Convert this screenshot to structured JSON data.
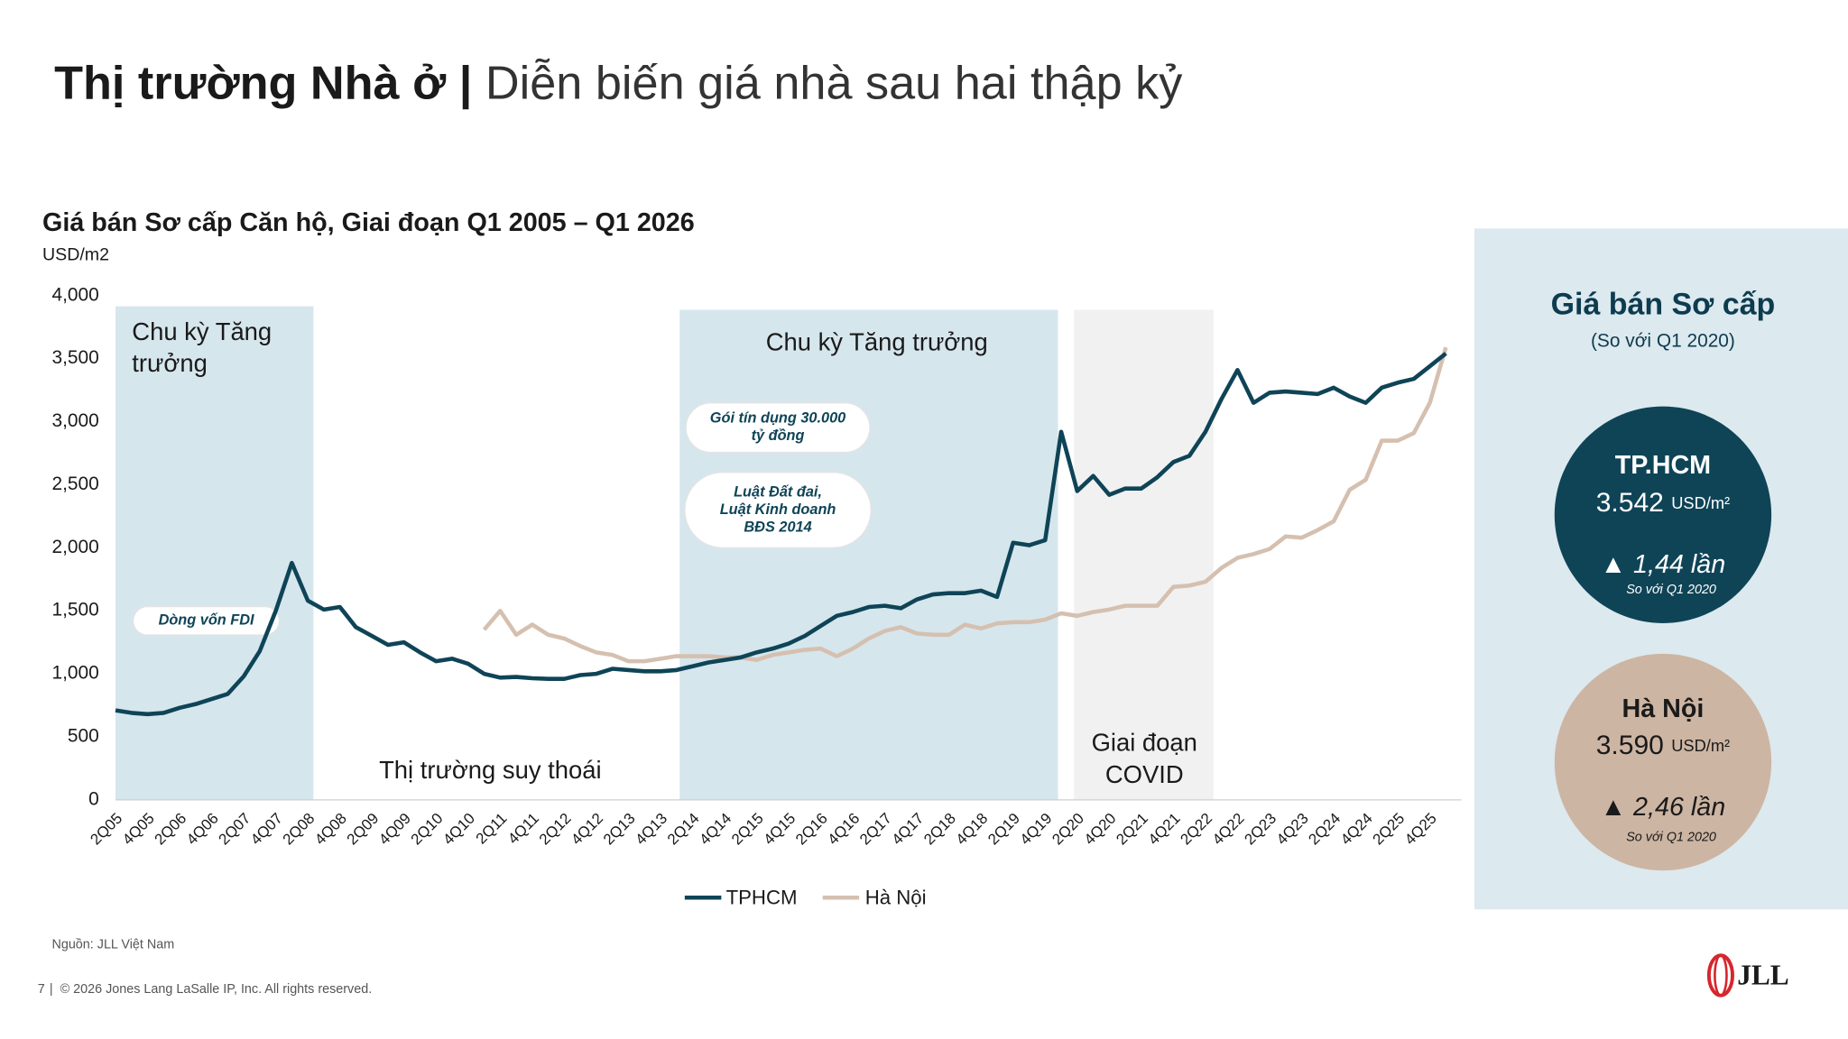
{
  "header": {
    "title_bold": "Thị trường Nhà ở",
    "title_separator": "|",
    "title_rest": "Diễn biến giá nhà sau hai thập kỷ"
  },
  "chart_data": {
    "type": "line",
    "title": "Giá bán Sơ cấp Căn hộ, Giai đoạn Q1 2005 – Q1 2026",
    "y_label": "USD/m2",
    "categories": [
      "2Q05",
      null,
      "4Q05",
      null,
      "2Q06",
      null,
      "4Q06",
      null,
      "2Q07",
      null,
      "4Q07",
      null,
      "2Q08",
      null,
      "4Q08",
      null,
      "2Q09",
      null,
      "4Q09",
      null,
      "2Q10",
      null,
      "4Q10",
      null,
      "2Q11",
      null,
      "4Q11",
      null,
      "2Q12",
      null,
      "4Q12",
      null,
      "2Q13",
      null,
      "4Q13",
      null,
      "2Q14",
      null,
      "4Q14",
      null,
      "2Q15",
      null,
      "4Q15",
      null,
      "2Q16",
      null,
      "4Q16",
      null,
      "2Q17",
      null,
      "4Q17",
      null,
      "2Q18",
      null,
      "4Q18",
      null,
      "2Q19",
      null,
      "4Q19",
      null,
      "2Q20",
      null,
      "4Q20",
      null,
      "2Q21",
      null,
      "4Q21",
      null,
      "2Q22",
      null,
      "4Q22",
      null,
      "2Q23",
      null,
      "4Q23",
      null,
      "2Q24",
      null,
      "4Q24",
      null,
      "2Q25",
      null,
      "4Q25",
      null
    ],
    "series": [
      {
        "name": "TPHCM",
        "color": "#0f4457",
        "values": [
          710,
          690,
          680,
          690,
          730,
          760,
          800,
          840,
          980,
          1180,
          1500,
          1880,
          1580,
          1510,
          1530,
          1370,
          1300,
          1230,
          1250,
          1170,
          1100,
          1120,
          1080,
          1000,
          970,
          975,
          965,
          960,
          960,
          990,
          1000,
          1040,
          1030,
          1020,
          1020,
          1030,
          1060,
          1090,
          1110,
          1130,
          1170,
          1200,
          1240,
          1300,
          1380,
          1460,
          1490,
          1530,
          1540,
          1520,
          1590,
          1630,
          1640,
          1640,
          1660,
          1610,
          2040,
          2020,
          2060,
          2920,
          2450,
          2570,
          2420,
          2470,
          2470,
          2560,
          2680,
          2730,
          2920,
          3180,
          3410,
          3150,
          3230,
          3240,
          3230,
          3220,
          3270,
          3200,
          3150,
          3270,
          3310,
          3340,
          3440,
          3542
        ]
      },
      {
        "name": "Hà Nội",
        "color": "#d5c0b0",
        "values": [
          null,
          null,
          null,
          null,
          null,
          null,
          null,
          null,
          null,
          null,
          null,
          null,
          null,
          null,
          null,
          null,
          null,
          null,
          null,
          null,
          null,
          null,
          null,
          1350,
          1500,
          1310,
          1390,
          1310,
          1280,
          1220,
          1170,
          1150,
          1100,
          1100,
          1120,
          1140,
          1140,
          1140,
          1130,
          1130,
          1110,
          1150,
          1170,
          1190,
          1200,
          1140,
          1200,
          1280,
          1340,
          1370,
          1320,
          1310,
          1310,
          1390,
          1360,
          1400,
          1410,
          1410,
          1430,
          1480,
          1460,
          1490,
          1510,
          1540,
          1540,
          1540,
          1690,
          1700,
          1730,
          1840,
          1920,
          1950,
          1990,
          2090,
          2080,
          2140,
          2210,
          2460,
          2540,
          2850,
          2850,
          2910,
          3150,
          3590
        ]
      }
    ],
    "ylim": [
      0,
      4000
    ],
    "yticks": [
      0,
      500,
      {
        "value": 1000,
        "label": "1,000"
      },
      {
        "value": 1500,
        "label": "1,500"
      },
      {
        "value": 2000,
        "label": "2,000"
      },
      {
        "value": 2500,
        "label": "2,500"
      },
      {
        "value": 3000,
        "label": "3,000"
      },
      {
        "value": 3500,
        "label": "3,500"
      },
      {
        "value": 4000,
        "label": "4,000"
      }
    ],
    "regions": [
      {
        "label": [
          "Chu kỳ Tăng",
          "trưởng"
        ]
      },
      {
        "label": [
          "Thị trường suy thoái"
        ]
      },
      {
        "label": [
          "Chu kỳ Tăng trưởng"
        ]
      },
      {
        "label": [
          "Giai đoạn",
          "COVID"
        ]
      }
    ],
    "annotations": [
      {
        "text": [
          "Dòng vốn FDI"
        ]
      },
      {
        "text": [
          "Gói tín dụng 30.000",
          "tỷ đồng"
        ]
      },
      {
        "text": [
          "Luật Đất đai,",
          "Luật Kinh doanh",
          "BĐS 2014"
        ]
      }
    ]
  },
  "side_panel": {
    "title": "Giá bán Sơ cấp",
    "subtitle": "(So với Q1 2020)",
    "cards": [
      {
        "city": "TP.HCM",
        "price": "3.542",
        "unit": "USD/m²",
        "change": "1,44 lần",
        "note": "So với Q1 2020"
      },
      {
        "city": "Hà Nội",
        "price": "3.590",
        "unit": "USD/m²",
        "change": "2,46 lần",
        "note": "So với Q1 2020"
      }
    ]
  },
  "footer": {
    "source": "Nguồn: JLL Việt Nam",
    "page": "7",
    "copyright": "© 2026 Jones Lang LaSalle IP, Inc. All rights reserved.",
    "logo": "JLL"
  }
}
